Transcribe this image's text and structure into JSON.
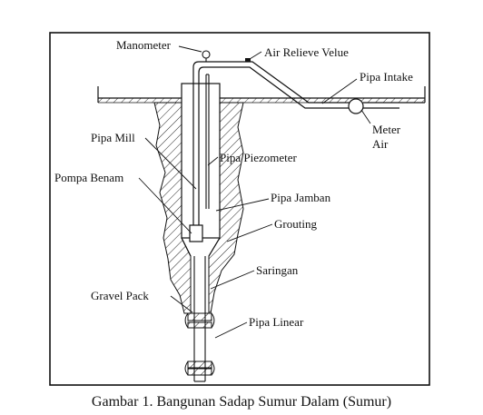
{
  "labels": {
    "manometer": "Manometer",
    "air_relieve": "Air Relieve Velue",
    "pipa_intake": "Pipa Intake",
    "meter": "Meter",
    "air": "Air",
    "pipa_mill": "Pipa Mill",
    "pipa_piezometer": "Pipa Piezometer",
    "pompa_benam": "Pompa Benam",
    "pipa_jamban": "Pipa Jamban",
    "grouting": "Grouting",
    "saringan": "Saringan",
    "gravel_pack": "Gravel Pack",
    "pipa_linear": "Pipa Linear"
  },
  "caption": "Gambar 1. Bangunan Sadap Sumur Dalam (Sumur)"
}
